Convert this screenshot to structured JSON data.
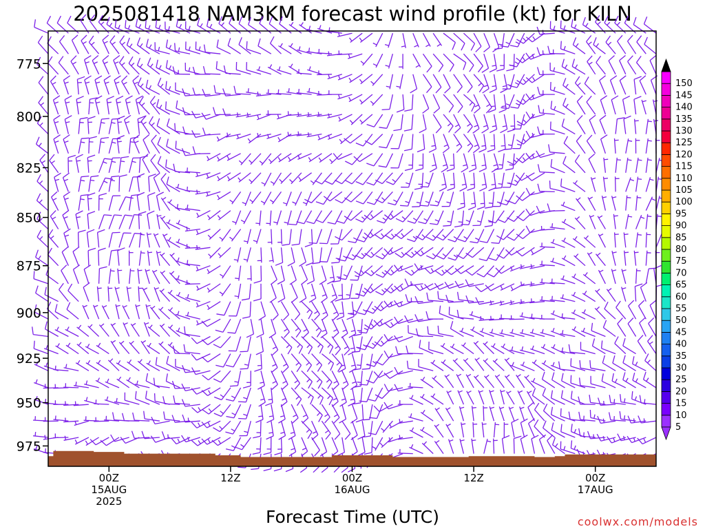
{
  "title": "2025081418 NAM3KM forecast wind profile (kt) for KILN",
  "watermark": "coolwx.com/models",
  "colors": {
    "barb": "#7b1fe8",
    "terrain": "#a0522d",
    "frame": "#000000",
    "background": "#ffffff"
  },
  "chart_data": {
    "type": "wind-barb-time-height",
    "title": "2025081418 NAM3KM forecast wind profile (kt) for KILN",
    "xlabel": "Forecast Time (UTC)",
    "ylabel": "",
    "x_ticks": [
      {
        "hours": 6,
        "lines": [
          "00Z",
          "15AUG",
          "2025"
        ]
      },
      {
        "hours": 18,
        "lines": [
          "12Z"
        ]
      },
      {
        "hours": 30,
        "lines": [
          "00Z",
          "16AUG"
        ]
      },
      {
        "hours": 42,
        "lines": [
          "12Z"
        ]
      },
      {
        "hours": 54,
        "lines": [
          "00Z",
          "17AUG"
        ]
      }
    ],
    "x_range_hours": [
      0,
      60
    ],
    "y_ticks": [
      775,
      800,
      825,
      850,
      875,
      900,
      925,
      950,
      975
    ],
    "y_range_hPa": [
      760,
      987
    ],
    "y_inverted": true,
    "y_scale": "log-pressure",
    "wind_speed_band_kt": [
      5,
      15
    ],
    "barb_color": "#7b1fe8",
    "colorbar": {
      "label_units": "kt",
      "levels": [
        5,
        10,
        15,
        20,
        25,
        30,
        35,
        40,
        45,
        50,
        55,
        60,
        65,
        70,
        75,
        80,
        85,
        90,
        95,
        100,
        105,
        110,
        115,
        120,
        125,
        130,
        135,
        140,
        145,
        150
      ],
      "colors": [
        "#9b30ff",
        "#7a00ff",
        "#5500ee",
        "#2b00e0",
        "#0000dd",
        "#0b3fe6",
        "#1560ee",
        "#1e80f2",
        "#29a4f4",
        "#2fc8e8",
        "#1ae6c8",
        "#00f2b4",
        "#00f070",
        "#30e430",
        "#6ef01e",
        "#b4f800",
        "#e6fa00",
        "#fff200",
        "#ffd000",
        "#ffae00",
        "#ff8c00",
        "#ff6e00",
        "#ff4c00",
        "#ff2800",
        "#f4003c",
        "#ec0064",
        "#ee0094",
        "#f000bb",
        "#f400de",
        "#f800ff"
      ]
    },
    "surface_pressure_hPa": [
      {
        "hours": 0,
        "p": 981
      },
      {
        "hours": 0.5,
        "p": 978
      },
      {
        "hours": 4.5,
        "p": 978.5
      },
      {
        "hours": 7.5,
        "p": 979.5
      },
      {
        "hours": 16.5,
        "p": 980.5
      },
      {
        "hours": 19,
        "p": 981.5
      },
      {
        "hours": 28,
        "p": 980.5
      },
      {
        "hours": 34,
        "p": 981.5
      },
      {
        "hours": 41.5,
        "p": 981
      },
      {
        "hours": 48,
        "p": 981.5
      },
      {
        "hours": 50,
        "p": 981
      },
      {
        "hours": 51,
        "p": 980
      },
      {
        "hours": 60,
        "p": 980
      }
    ]
  }
}
